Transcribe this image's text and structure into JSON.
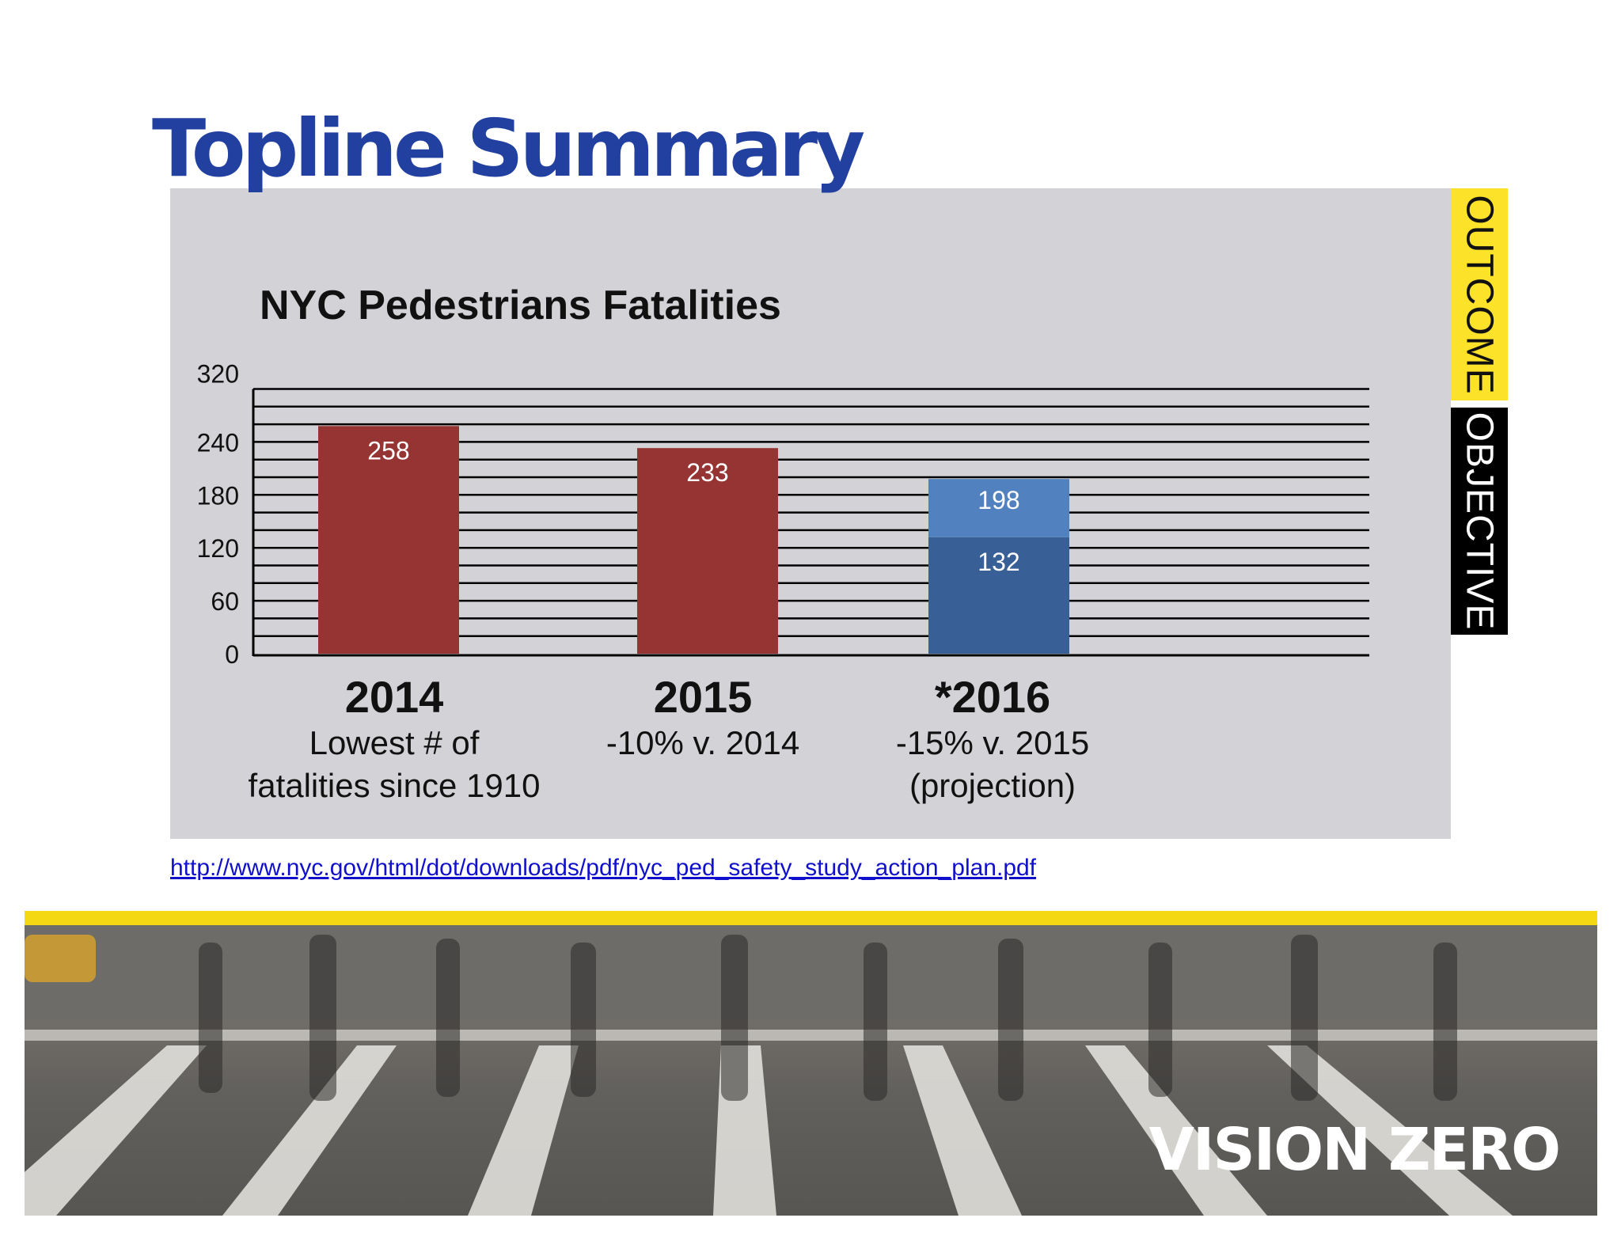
{
  "slide": {
    "title": "Topline Summary",
    "source_url": "http://www.nyc.gov/html/dot/downloads/pdf/nyc_ped_safety_study_action_plan.pdf"
  },
  "side_tabs": {
    "outcome": "OUTCOME",
    "objective": "OBJECTIVE"
  },
  "captions": [
    {
      "year": "2014",
      "lines": [
        "Lowest # of",
        "fatalities since 1910"
      ]
    },
    {
      "year": "2015",
      "lines": [
        "-10% v. 2014"
      ]
    },
    {
      "year": "*2016",
      "lines": [
        "-15% v. 2015",
        "(projection)"
      ]
    }
  ],
  "banner": {
    "logo": "VISION ZERO"
  },
  "colors": {
    "title": "#2240a0",
    "bar": "#963433",
    "proj_top": "#5181be",
    "proj_bottom": "#386096",
    "tab_outcome": "#fde22a",
    "tab_objective": "#000000",
    "link": "#1010cc"
  },
  "chart_data": {
    "type": "bar",
    "title": "NYC Pedestrians Fatalities",
    "categories": [
      "2014",
      "2015",
      "*2016"
    ],
    "series": [
      {
        "values": [
          258,
          233,
          132
        ]
      },
      {
        "values": [
          0,
          0,
          66
        ]
      }
    ],
    "data_labels": [
      "258",
      "233",
      "198",
      "132"
    ],
    "y_ticks": [
      0,
      60,
      120,
      180,
      240,
      320
    ],
    "ylim": [
      0,
      320
    ],
    "grid": true
  }
}
